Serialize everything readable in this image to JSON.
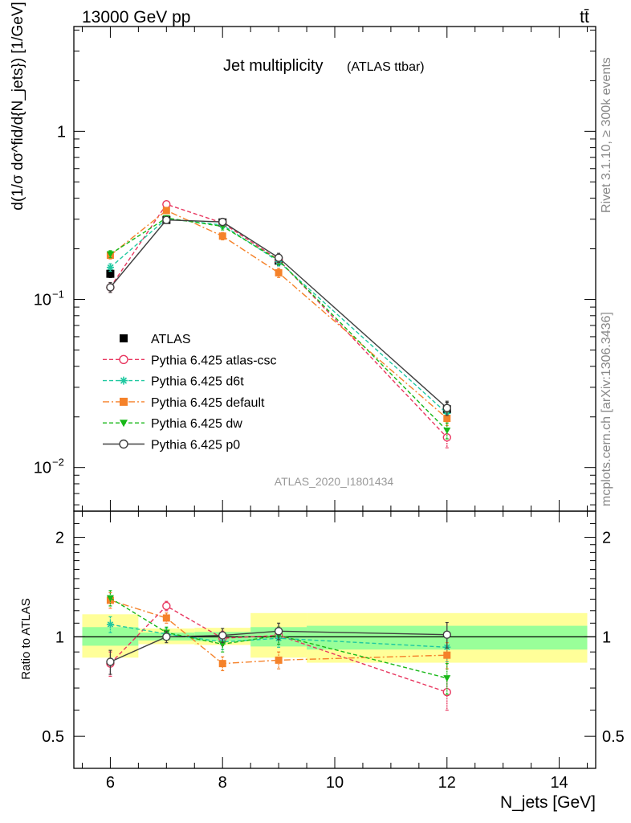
{
  "header": {
    "energy_label": "13000 GeV pp",
    "process_label": "tt̄"
  },
  "sidebar": {
    "rivet_label": "Rivet 3.1.10, ≥ 300k events",
    "source_label": "mcplots.cern.ch [arXiv:1306.3436]"
  },
  "chart_data": [
    {
      "type": "line",
      "panel": "main",
      "title": "Jet multiplicity",
      "subtitle": "(ATLAS ttbar)",
      "watermark": "ATLAS_2020_I1801434",
      "ylabel": "d(1/σ dσ^fid/d{N_jets}) [1/GeV]",
      "yscale": "log",
      "ylim": [
        0.0055,
        4.2
      ],
      "xlim": [
        5.35,
        14.65
      ],
      "ytick_labels": [
        "10^-2",
        "10^-1",
        "1"
      ],
      "legend_position": "center-left",
      "x": [
        6,
        7,
        8,
        9,
        12
      ],
      "series": [
        {
          "name": "ATLAS",
          "color": "#000000",
          "marker": "square-filled",
          "line": "none",
          "values": [
            0.142,
            0.297,
            0.287,
            0.17,
            0.0222
          ],
          "errors": [
            0.007,
            0.012,
            0.013,
            0.01,
            0.0022
          ]
        },
        {
          "name": "Pythia 6.425 atlas-csc",
          "color": "#e8365f",
          "marker": "circle-open",
          "line": "dashed",
          "values": [
            0.118,
            0.368,
            0.285,
            0.172,
            0.0151
          ],
          "errors": [
            0.008,
            0.01,
            0.014,
            0.01,
            0.002
          ]
        },
        {
          "name": "Pythia 6.425 d6t",
          "color": "#1ec8a0",
          "marker": "asterisk",
          "line": "dashed",
          "values": [
            0.155,
            0.302,
            0.277,
            0.168,
            0.021
          ],
          "errors": [
            0.008,
            0.01,
            0.013,
            0.01,
            0.002
          ]
        },
        {
          "name": "Pythia 6.425 default",
          "color": "#f5822a",
          "marker": "square-filled",
          "line": "dashdot",
          "values": [
            0.183,
            0.338,
            0.238,
            0.144,
            0.0196
          ],
          "errors": [
            0.009,
            0.011,
            0.012,
            0.009,
            0.0018
          ]
        },
        {
          "name": "Pythia 6.425 dw",
          "color": "#18b818",
          "marker": "triangle-down",
          "line": "dashed",
          "values": [
            0.186,
            0.305,
            0.272,
            0.171,
            0.0166
          ],
          "errors": [
            0.009,
            0.01,
            0.013,
            0.01,
            0.0018
          ]
        },
        {
          "name": "Pythia 6.425 p0",
          "color": "#404040",
          "marker": "circle-open",
          "line": "solid",
          "values": [
            0.118,
            0.297,
            0.289,
            0.177,
            0.0226
          ],
          "errors": [
            0.008,
            0.01,
            0.014,
            0.011,
            0.0022
          ]
        }
      ]
    },
    {
      "type": "line",
      "panel": "ratio",
      "xlabel": "N_jets [GeV]",
      "ylabel": "Ratio to ATLAS",
      "ylim": [
        0.4,
        2.4
      ],
      "yscale": "log",
      "ytick_labels": [
        "0.5",
        "1",
        "2"
      ],
      "xtick_labels": [
        "6",
        "8",
        "10",
        "12",
        "14"
      ],
      "bands": [
        {
          "x_range": [
            5.5,
            6.5
          ],
          "inner": [
            0.94,
            1.07
          ],
          "outer": [
            0.865,
            1.17
          ]
        },
        {
          "x_range": [
            6.5,
            7.5
          ],
          "inner": [
            0.975,
            1.03
          ],
          "outer": [
            0.95,
            1.06
          ]
        },
        {
          "x_range": [
            7.5,
            8.5
          ],
          "inner": [
            0.97,
            1.035
          ],
          "outer": [
            0.945,
            1.065
          ]
        },
        {
          "x_range": [
            8.5,
            9.5
          ],
          "inner": [
            0.935,
            1.07
          ],
          "outer": [
            0.865,
            1.18
          ]
        },
        {
          "x_range": [
            9.5,
            14.5
          ],
          "inner": [
            0.915,
            1.08
          ],
          "outer": [
            0.835,
            1.18
          ]
        }
      ],
      "x": [
        6,
        7,
        8,
        9,
        12
      ],
      "series": [
        {
          "name": "Pythia 6.425 atlas-csc",
          "color": "#e8365f",
          "marker": "circle-open",
          "line": "dashed",
          "values": [
            0.83,
            1.24,
            0.99,
            1.01,
            0.68
          ],
          "errors": [
            0.07,
            0.04,
            0.05,
            0.06,
            0.08
          ]
        },
        {
          "name": "Pythia 6.425 d6t",
          "color": "#1ec8a0",
          "marker": "asterisk",
          "line": "dashed",
          "values": [
            1.09,
            1.02,
            0.965,
            0.99,
            0.93
          ],
          "errors": [
            0.06,
            0.04,
            0.05,
            0.06,
            0.09
          ]
        },
        {
          "name": "Pythia 6.425 default",
          "color": "#f5822a",
          "marker": "square-filled",
          "line": "dashdot",
          "values": [
            1.29,
            1.14,
            0.83,
            0.85,
            0.88
          ],
          "errors": [
            0.07,
            0.04,
            0.04,
            0.05,
            0.08
          ]
        },
        {
          "name": "Pythia 6.425 dw",
          "color": "#18b818",
          "marker": "triangle-down",
          "line": "dashed",
          "values": [
            1.31,
            1.03,
            0.95,
            1.01,
            0.75
          ],
          "errors": [
            0.07,
            0.04,
            0.05,
            0.06,
            0.08
          ]
        },
        {
          "name": "Pythia 6.425 p0",
          "color": "#404040",
          "marker": "circle-open",
          "line": "solid",
          "values": [
            0.84,
            1.0,
            1.01,
            1.04,
            1.015
          ],
          "errors": [
            0.07,
            0.04,
            0.05,
            0.06,
            0.09
          ]
        }
      ]
    }
  ]
}
